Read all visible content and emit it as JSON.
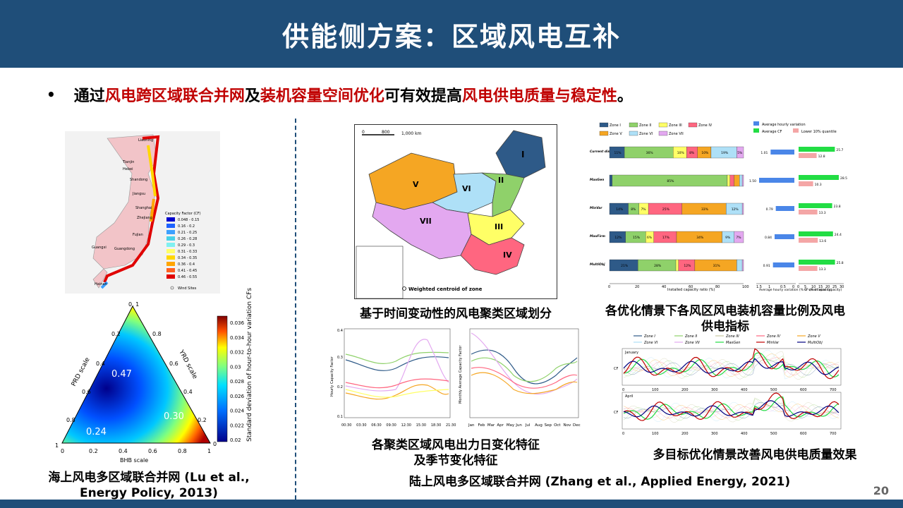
{
  "slide": {
    "title": "供能侧方案：区域风电互补",
    "page_number": "20"
  },
  "bullet": {
    "parts": [
      {
        "text": "通过",
        "highlight": false
      },
      {
        "text": "风电跨区域联合并网",
        "highlight": true
      },
      {
        "text": "及",
        "highlight": false
      },
      {
        "text": "装机容量空间优化",
        "highlight": true
      },
      {
        "text": "可有效提高",
        "highlight": false
      },
      {
        "text": "风电供电质量与稳定性",
        "highlight": true
      },
      {
        "text": "。",
        "highlight": false
      }
    ]
  },
  "left": {
    "map_labels": {
      "provinces": [
        "Liaoning",
        "Tianjin",
        "Hebei",
        "Shandong",
        "Jiangsu",
        "Shanghai",
        "Zhejiang",
        "Fujian",
        "Guangdong",
        "Guangxi",
        "Hainan"
      ],
      "legend_title": "Capacity Factor (CF)",
      "legend_items": [
        "0.048 - 0.15",
        "0.16 - 0.2",
        "0.21 - 0.25",
        "0.26 - 0.28",
        "0.29 - 0.3",
        "0.31 - 0.33",
        "0.34 - 0.35",
        "0.36 - 0.4",
        "0.41 - 0.45",
        "0.46 - 0.55"
      ],
      "legend_colors": [
        "#0000cd",
        "#1e62ff",
        "#3ca0ff",
        "#48d1e8",
        "#7ff0f0",
        "#ffff66",
        "#ffd700",
        "#ffa500",
        "#ff6020",
        "#e00000"
      ],
      "wind_sites": "Wind Sites"
    },
    "ternary": {
      "prd_scale": "PRD scale",
      "yrd_scale": "YRD scale",
      "bhb_scale": "BHB scale",
      "val1": "0.47",
      "val2": "0.30",
      "val3": "0.24",
      "ticks_left": [
        "0",
        "0.2",
        "0.4",
        "0.6",
        "0.8",
        "1"
      ],
      "ticks_right": [
        "1",
        "0.8",
        "0.6",
        "0.4",
        "0.2",
        "0"
      ],
      "ticks_bottom": [
        "0",
        "0.2",
        "0.4",
        "0.6",
        "0.8",
        "1"
      ],
      "top_label": "0, 1",
      "colorbar_label": "Standard deviation of hour-to-hour variation CFs",
      "colorbar_ticks": [
        "0.036",
        "0.034",
        "0.032",
        "0.03",
        "0.028",
        "0.026",
        "0.024",
        "0.022",
        "0.02"
      ]
    },
    "caption_line1": "海上风电多区域联合并网 (Lu et al.,",
    "caption_line2": "Energy Policy, 2013)"
  },
  "middle": {
    "map": {
      "scale_ticks": [
        "0",
        "800",
        "1,000 km"
      ],
      "zones": [
        "I",
        "II",
        "III",
        "IV",
        "V",
        "VI",
        "VII"
      ],
      "legend": "Weighted centroid of zone"
    },
    "map_caption": "基于时间变动性的风电聚类区域划分",
    "daily": {
      "ylabel": "Hourly Capacity Factor",
      "xticks": [
        "00:30",
        "03:30",
        "06:30",
        "09:30",
        "12:30",
        "15:30",
        "18:30",
        "21:30"
      ],
      "yticks": [
        "0.4",
        "0.3",
        "0.2",
        "0.1"
      ]
    },
    "monthly": {
      "ylabel": "Monthly Average Capacity Factor",
      "xticks": [
        "Jan",
        "Feb",
        "Mar",
        "Apr",
        "May",
        "Jun",
        "Jul",
        "Aug",
        "Sep",
        "Oct",
        "Nov",
        "Dec"
      ]
    },
    "curves_caption_line1": "各聚类区域风电出力日变化特征",
    "curves_caption_line2": "及季节变化特征"
  },
  "right": {
    "bar_legend": [
      "Zone I",
      "Zone II",
      "Zone III",
      "Zone IV",
      "Zone V",
      "Zone VI",
      "Zone VII"
    ],
    "bar_colors": [
      "#2e5a88",
      "#8fd16a",
      "#ffff66",
      "#ff6680",
      "#f5a623",
      "#aee0f7",
      "#e3a8f0"
    ],
    "scenarios": [
      "Current distribution",
      "MaxGen",
      "MinVar",
      "MaxFirm",
      "MultiObj"
    ],
    "bar_values": [
      [
        "11%",
        "36%",
        "10%",
        "8%",
        "10%",
        "19%",
        "5%"
      ],
      [
        "",
        "85%",
        "",
        "",
        "",
        "",
        ""
      ],
      [
        "14%",
        "8%",
        "7%",
        "25%",
        "33%",
        "12%",
        ""
      ],
      [
        "12%",
        "15%",
        "6%",
        "17%",
        "34%",
        "9%",
        "7%"
      ],
      [
        "21%",
        "28%",
        "",
        "12%",
        "31%",
        "",
        ""
      ]
    ],
    "stack_data": [
      [
        11,
        36,
        10,
        8,
        10,
        19,
        5
      ],
      [
        2,
        85,
        2,
        3,
        4,
        2,
        1
      ],
      [
        14,
        8,
        7,
        25,
        33,
        12,
        1
      ],
      [
        12,
        15,
        6,
        17,
        34,
        9,
        7
      ],
      [
        21,
        28,
        2,
        12,
        31,
        4,
        1
      ]
    ],
    "bar_xlabel": "Installed capacity ratio (%)",
    "bar_xticks": [
      "0",
      "20",
      "40",
      "60",
      "80",
      "100"
    ],
    "variation_legend": "Average hourly variation",
    "variation_values": [
      "1.01",
      "1.50",
      "0.79",
      "0.84",
      "0.91"
    ],
    "variation_xlabel": "Average hourly variation (% of wind capacity)",
    "variation_xticks": [
      "1.5",
      "1",
      "0.5",
      "0"
    ],
    "cf_legend": [
      "Average CF",
      "Lower 10% quantile"
    ],
    "cf_avg": [
      "25.7",
      "28.5",
      "23.8",
      "24.4",
      "25.8"
    ],
    "cf_low": [
      "12.8",
      "10.3",
      "13.3",
      "13.6",
      "13.3"
    ],
    "cf_xlabel": "CF (% of wind capacity)",
    "cf_xticks": [
      "0",
      "5",
      "10",
      "15",
      "20",
      "25",
      "30"
    ],
    "bar_caption_line1": "各优化情景下各风区风电装机容量比例及风电",
    "bar_caption_line2": "供电指标",
    "ts_legend": [
      "Zone I",
      "Zone II",
      "Zone III",
      "Zone IV",
      "Zone V",
      "Zone VI",
      "Zone VII",
      "MaxGen",
      "MinVar",
      "MultiObj"
    ],
    "ts_month1": "January",
    "ts_month2": "April",
    "ts_ylabel": "CF",
    "ts_xticks": [
      "0",
      "100",
      "200",
      "300",
      "400",
      "500",
      "600",
      "700"
    ],
    "ts_caption": "多目标优化情景改善风电供电质量效果"
  },
  "bottom_caption": "陆上风电多区域联合并网 (Zhang et al., Applied Energy, 2021)"
}
